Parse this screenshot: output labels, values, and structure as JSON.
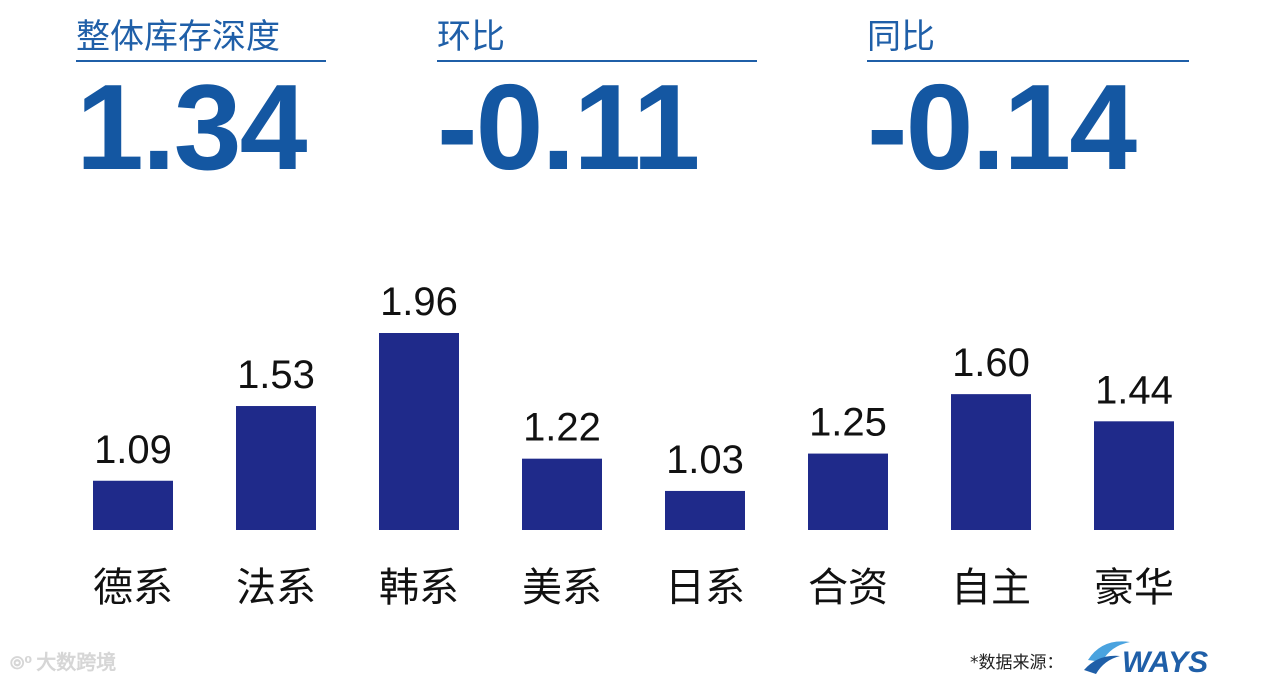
{
  "kpis": [
    {
      "label": "整体库存深度",
      "value": "1.34"
    },
    {
      "label": "环比",
      "value": "-0.11"
    },
    {
      "label": "同比",
      "value": "-0.14"
    }
  ],
  "chart_data": {
    "type": "bar",
    "categories": [
      "德系",
      "法系",
      "韩系",
      "美系",
      "日系",
      "合资",
      "自主",
      "豪华"
    ],
    "values": [
      1.09,
      1.53,
      1.96,
      1.22,
      1.03,
      1.25,
      1.6,
      1.44
    ],
    "value_labels": [
      "1.09",
      "1.53",
      "1.96",
      "1.22",
      "1.03",
      "1.25",
      "1.60",
      "1.44"
    ],
    "ylim": [
      0.8,
      2.0
    ],
    "bar_color": "#1f2a8a",
    "grid": false
  },
  "footer": {
    "source_label": "*数据来源：",
    "logo_text": "WAYS"
  },
  "watermark": {
    "text": "大数跨境"
  },
  "colors": {
    "accent": "#1457a2",
    "bar": "#1f2a8a"
  }
}
